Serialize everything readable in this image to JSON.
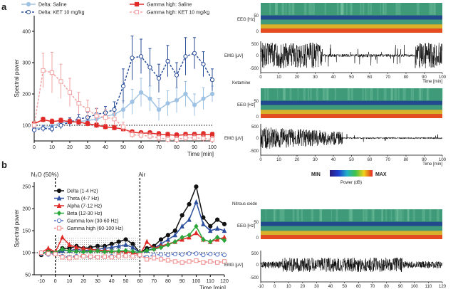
{
  "chart_data": [
    {
      "panel": "a",
      "type": "line",
      "ylabel": "Spectral power",
      "xlabel": "Time [min]",
      "xlim": [
        0,
        100
      ],
      "ylim": [
        50,
        450
      ],
      "xticks": [
        0,
        10,
        20,
        30,
        40,
        50,
        60,
        70,
        80,
        90,
        100
      ],
      "yticks": [
        100,
        200,
        300,
        400
      ],
      "baseline": 100,
      "legend": [
        "Delta: Saline",
        "Delta: KET 10 mg/kg",
        "Gamma high: Saline",
        "Gamma high: KET 10 mg/kg"
      ],
      "series": [
        {
          "name": "Delta: Saline",
          "color": "#9ec2e3",
          "style": "solid",
          "marker": "circle-filled",
          "x": [
            0,
            5,
            10,
            15,
            20,
            25,
            30,
            35,
            40,
            45,
            50,
            55,
            60,
            65,
            70,
            75,
            80,
            85,
            90,
            95,
            100
          ],
          "y": [
            90,
            92,
            98,
            108,
            110,
            112,
            115,
            120,
            128,
            135,
            150,
            175,
            205,
            185,
            150,
            170,
            180,
            200,
            165,
            185,
            200
          ],
          "err": [
            8,
            8,
            10,
            12,
            12,
            14,
            15,
            18,
            20,
            22,
            28,
            40,
            45,
            40,
            35,
            40,
            40,
            40,
            35,
            35,
            25
          ]
        },
        {
          "name": "Delta: KET 10 mg/kg",
          "color": "#2b4e9b",
          "style": "dashed",
          "marker": "circle-open",
          "x": [
            0,
            5,
            10,
            15,
            20,
            25,
            30,
            35,
            40,
            45,
            50,
            55,
            60,
            65,
            70,
            75,
            80,
            85,
            90,
            95,
            100
          ],
          "y": [
            85,
            90,
            88,
            100,
            110,
            120,
            125,
            135,
            140,
            150,
            225,
            315,
            320,
            285,
            250,
            305,
            260,
            320,
            330,
            295,
            245
          ],
          "err": [
            8,
            10,
            10,
            12,
            14,
            15,
            16,
            18,
            20,
            25,
            55,
            70,
            55,
            60,
            45,
            50,
            40,
            60,
            50,
            40,
            35
          ]
        },
        {
          "name": "Gamma high: Saline",
          "color": "#e02a28",
          "style": "solid",
          "marker": "square-filled",
          "x": [
            0,
            5,
            10,
            15,
            20,
            25,
            30,
            35,
            40,
            45,
            50,
            55,
            60,
            65,
            70,
            75,
            80,
            85,
            90,
            95,
            100
          ],
          "y": [
            105,
            118,
            112,
            115,
            112,
            110,
            105,
            100,
            95,
            92,
            88,
            78,
            75,
            75,
            72,
            70,
            68,
            70,
            70,
            72,
            70
          ],
          "err": [
            6,
            8,
            8,
            8,
            8,
            8,
            8,
            8,
            8,
            8,
            8,
            8,
            8,
            8,
            8,
            8,
            8,
            8,
            8,
            8,
            8
          ]
        },
        {
          "name": "Gamma high: KET 10 mg/kg",
          "color": "#f1a2a2",
          "style": "dashed",
          "marker": "square-open",
          "x": [
            0,
            5,
            10,
            15,
            20,
            25,
            30,
            35,
            40,
            45,
            50,
            55,
            60,
            65,
            70,
            75,
            80,
            85,
            90,
            95,
            100
          ],
          "y": [
            100,
            275,
            268,
            240,
            205,
            170,
            150,
            130,
            125,
            120,
            95,
            70,
            68,
            65,
            60,
            55,
            55,
            60,
            60,
            58,
            55
          ],
          "err": [
            10,
            55,
            65,
            55,
            45,
            35,
            30,
            25,
            25,
            20,
            15,
            10,
            10,
            10,
            10,
            10,
            10,
            10,
            10,
            10,
            10
          ]
        }
      ]
    },
    {
      "panel": "b",
      "type": "line",
      "ylabel": "Spectral power",
      "xlabel": "Time [min]",
      "xlim": [
        -15,
        120
      ],
      "ylim": [
        50,
        260
      ],
      "xticks": [
        -10,
        0,
        10,
        20,
        30,
        40,
        50,
        60,
        70,
        80,
        90,
        100,
        110,
        120
      ],
      "yticks": [
        50,
        100,
        150,
        200,
        250
      ],
      "baseline": 100,
      "annotations": [
        "N₂O (50%)",
        "Air"
      ],
      "legend": [
        "Delta (1-4 Hz)",
        "Theta (4-7 Hz)",
        "Alpha (7-12 Hz)",
        "Beta (12-30 Hz)",
        "Gamma low (30-60 Hz)",
        "Gamma high (60-100 Hz)"
      ],
      "series": [
        {
          "name": "Delta (1-4 Hz)",
          "color": "#111111",
          "style": "solid",
          "marker": "circle-filled",
          "x": [
            -10,
            -5,
            0,
            5,
            10,
            15,
            20,
            25,
            30,
            35,
            40,
            45,
            50,
            55,
            60,
            65,
            70,
            75,
            80,
            85,
            90,
            95,
            100,
            105,
            110,
            115,
            120
          ],
          "y": [
            95,
            105,
            100,
            110,
            110,
            115,
            110,
            112,
            115,
            115,
            120,
            125,
            130,
            120,
            100,
            110,
            115,
            130,
            140,
            150,
            185,
            210,
            250,
            180,
            160,
            175,
            165
          ]
        },
        {
          "name": "Theta (4-7 Hz)",
          "color": "#2c4f9e",
          "style": "solid",
          "marker": "triangle-filled",
          "x": [
            -10,
            -5,
            0,
            5,
            10,
            15,
            20,
            25,
            30,
            35,
            40,
            45,
            50,
            55,
            60,
            65,
            70,
            75,
            80,
            85,
            90,
            95,
            100,
            105,
            110,
            115,
            120
          ],
          "y": [
            100,
            100,
            98,
            105,
            105,
            108,
            105,
            106,
            108,
            110,
            112,
            115,
            118,
            112,
            100,
            105,
            110,
            120,
            130,
            140,
            160,
            175,
            215,
            165,
            150,
            155,
            150
          ]
        },
        {
          "name": "Alpha (7-12 Hz)",
          "color": "#e02a28",
          "style": "solid",
          "marker": "triangle-filled",
          "x": [
            -10,
            -5,
            0,
            5,
            10,
            15,
            20,
            25,
            30,
            35,
            40,
            45,
            50,
            55,
            60,
            65,
            70,
            75,
            80,
            85,
            90,
            95,
            100,
            105,
            110,
            115,
            120
          ],
          "y": [
            100,
            110,
            102,
            135,
            118,
            112,
            110,
            108,
            106,
            105,
            104,
            103,
            102,
            100,
            95,
            125,
            110,
            115,
            120,
            125,
            130,
            135,
            145,
            130,
            125,
            130,
            135
          ]
        },
        {
          "name": "Beta (12-30 Hz)",
          "color": "#2aa63a",
          "style": "solid",
          "marker": "diamond-filled",
          "x": [
            -10,
            -5,
            0,
            5,
            10,
            15,
            20,
            25,
            30,
            35,
            40,
            45,
            50,
            55,
            60,
            65,
            70,
            75,
            80,
            85,
            90,
            95,
            100,
            105,
            110,
            115,
            120
          ],
          "y": [
            98,
            102,
            100,
            108,
            104,
            103,
            102,
            103,
            104,
            102,
            103,
            104,
            105,
            103,
            100,
            105,
            108,
            112,
            118,
            125,
            135,
            140,
            160,
            130,
            125,
            135,
            128
          ]
        },
        {
          "name": "Gamma low (30-60 Hz)",
          "color": "#5b78c8",
          "style": "dashed",
          "marker": "circle-open",
          "x": [
            -10,
            -5,
            0,
            5,
            10,
            15,
            20,
            25,
            30,
            35,
            40,
            45,
            50,
            55,
            60,
            65,
            70,
            75,
            80,
            85,
            90,
            95,
            100,
            105,
            110,
            115,
            120
          ],
          "y": [
            98,
            96,
            97,
            92,
            90,
            92,
            92,
            90,
            90,
            91,
            92,
            92,
            93,
            92,
            95,
            90,
            95,
            96,
            95,
            97,
            96,
            98,
            98,
            95,
            97,
            96,
            95
          ]
        },
        {
          "name": "Gamma high (60-100 Hz)",
          "color": "#f08a8a",
          "style": "dashed",
          "marker": "square-open",
          "x": [
            -10,
            -5,
            0,
            5,
            10,
            15,
            20,
            25,
            30,
            35,
            40,
            45,
            50,
            55,
            60,
            65,
            70,
            75,
            80,
            85,
            90,
            95,
            100,
            105,
            110,
            115,
            120
          ],
          "y": [
            100,
            98,
            97,
            90,
            88,
            90,
            92,
            91,
            90,
            91,
            90,
            92,
            93,
            92,
            95,
            85,
            88,
            85,
            83,
            80,
            78,
            80,
            82,
            78,
            80,
            78,
            80
          ]
        }
      ]
    }
  ],
  "spectrograms": {
    "eeg_label": "EEG [Hz]",
    "emg_label": "EMG [µV]",
    "time_label": "Time [min]",
    "eeg_ticks": [
      "50",
      "0"
    ],
    "emg_ticks": [
      "500",
      "0",
      "-500"
    ],
    "panels": [
      {
        "id": "saline",
        "title": "",
        "time_ticks": [
          "0",
          "10",
          "20",
          "30",
          "40",
          "50",
          "60",
          "70",
          "80",
          "90",
          "100"
        ]
      },
      {
        "id": "ketamine",
        "title": "Ketamine",
        "time_ticks": [
          "0",
          "10",
          "20",
          "30",
          "40",
          "50",
          "60",
          "70",
          "80",
          "90",
          "100"
        ]
      },
      {
        "id": "nitrous",
        "title": "Nitrous oxide",
        "time_ticks": [
          "-10",
          "0",
          "10",
          "20",
          "30",
          "40",
          "50",
          "60",
          "70",
          "80",
          "90",
          "100",
          "110",
          "120"
        ]
      }
    ],
    "colorbar": {
      "min_label": "MIN",
      "max_label": "MAX",
      "unit_label": "Power (dB)"
    }
  },
  "labels": {
    "panel_a": "a",
    "panel_b": "b"
  },
  "colors": {
    "spec_top": "#3e9a78",
    "spec_band": "#1f3c8f",
    "spec_low": "#d9b02a",
    "spec_floor": "#e64a1f"
  }
}
